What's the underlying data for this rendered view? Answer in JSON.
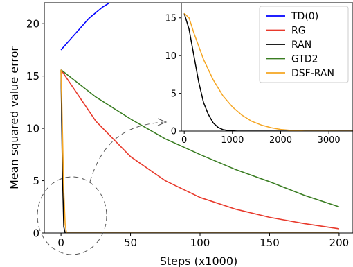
{
  "chart_data": [
    {
      "type": "line",
      "role": "main",
      "xlabel": "Steps (x1000)",
      "ylabel": "Mean squared value error",
      "xlim": [
        -12,
        210
      ],
      "ylim": [
        0,
        22
      ],
      "xticks": [
        0,
        50,
        100,
        150,
        200
      ],
      "yticks": [
        0,
        5,
        10,
        15,
        20
      ],
      "series": [
        {
          "name": "TD(0)",
          "color": "#0000ff",
          "x": [
            0,
            10,
            20,
            30,
            35
          ],
          "y": [
            17.5,
            19.0,
            20.5,
            21.6,
            22.0
          ]
        },
        {
          "name": "RG",
          "color": "#e8392b",
          "x": [
            0,
            25,
            50,
            75,
            100,
            125,
            150,
            175,
            200
          ],
          "y": [
            15.6,
            10.7,
            7.3,
            5.0,
            3.4,
            2.3,
            1.5,
            0.9,
            0.4
          ]
        },
        {
          "name": "RAN",
          "color": "#000000",
          "x": [
            0,
            1,
            2,
            3,
            200
          ],
          "y": [
            15.6,
            6.0,
            0.6,
            0.0,
            0.0
          ]
        },
        {
          "name": "GTD2",
          "color": "#3a7d22",
          "x": [
            0,
            25,
            50,
            75,
            100,
            125,
            150,
            175,
            200
          ],
          "y": [
            15.6,
            13.0,
            10.9,
            9.0,
            7.5,
            6.1,
            4.9,
            3.6,
            2.5
          ]
        },
        {
          "name": "DSF-RAN",
          "color": "#f5a623",
          "x": [
            0,
            1,
            2,
            3,
            4,
            200
          ],
          "y": [
            15.6,
            10.0,
            4.0,
            0.8,
            0.0,
            0.0
          ]
        }
      ]
    },
    {
      "type": "line",
      "role": "inset",
      "xlim": [
        -60,
        3500
      ],
      "ylim": [
        0,
        17
      ],
      "xticks": [
        0,
        1000,
        2000,
        3000
      ],
      "yticks": [
        0,
        5,
        10,
        15
      ],
      "series": [
        {
          "name": "RAN",
          "color": "#000000",
          "x": [
            0,
            100,
            200,
            300,
            400,
            500,
            600,
            700,
            800,
            900,
            1000,
            1100,
            1200,
            3500
          ],
          "y": [
            15.6,
            13.5,
            10.0,
            6.5,
            3.8,
            2.2,
            1.1,
            0.5,
            0.2,
            0.08,
            0.03,
            0.0,
            0.0,
            0.0
          ]
        },
        {
          "name": "DSF-RAN",
          "color": "#f5a623",
          "x": [
            0,
            100,
            200,
            400,
            600,
            800,
            1000,
            1200,
            1400,
            1600,
            1800,
            2000,
            2200,
            2500,
            3500
          ],
          "y": [
            15.6,
            15.0,
            13.0,
            9.5,
            6.8,
            4.7,
            3.2,
            2.1,
            1.3,
            0.8,
            0.45,
            0.22,
            0.1,
            0.0,
            0.0
          ]
        }
      ]
    }
  ],
  "legend": {
    "location": "top-right",
    "entries": [
      {
        "label": "TD(0)",
        "color": "#0000ff"
      },
      {
        "label": "RG",
        "color": "#e8392b"
      },
      {
        "label": "RAN",
        "color": "#000000"
      },
      {
        "label": "GTD2",
        "color": "#3a7d22"
      },
      {
        "label": "DSF-RAN",
        "color": "#f5a623"
      }
    ]
  }
}
